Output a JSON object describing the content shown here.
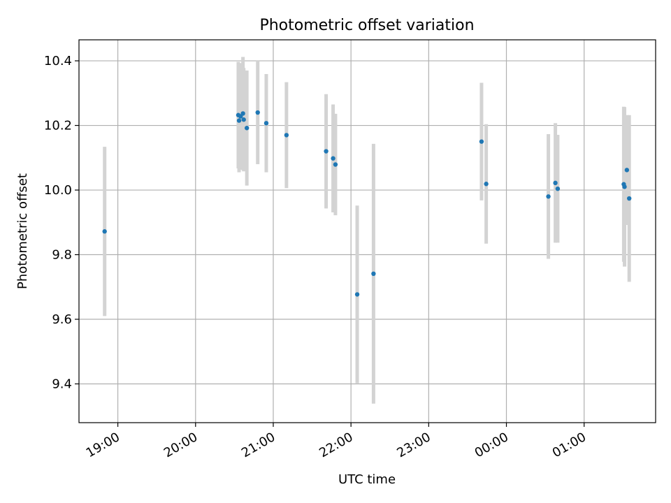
{
  "chart_data": {
    "type": "scatter",
    "title": "Photometric offset variation",
    "xlabel": "UTC time",
    "ylabel": "Photometric offset",
    "x_unit": "UTC hours (times after midnight written as 24+)",
    "xlim": [
      18.5,
      25.92
    ],
    "ylim": [
      9.28,
      10.465
    ],
    "x_ticks": [
      {
        "value": 19,
        "label": "19:00"
      },
      {
        "value": 20,
        "label": "20:00"
      },
      {
        "value": 21,
        "label": "21:00"
      },
      {
        "value": 22,
        "label": "22:00"
      },
      {
        "value": 23,
        "label": "23:00"
      },
      {
        "value": 24,
        "label": "00:00"
      },
      {
        "value": 25,
        "label": "01:00"
      }
    ],
    "y_ticks": [
      {
        "value": 9.4,
        "label": "9.4"
      },
      {
        "value": 9.6,
        "label": "9.6"
      },
      {
        "value": 9.8,
        "label": "9.8"
      },
      {
        "value": 10.0,
        "label": "10.0"
      },
      {
        "value": 10.2,
        "label": "10.2"
      },
      {
        "value": 10.4,
        "label": "10.4"
      }
    ],
    "grid": true,
    "x_tick_rotation": "30 degrees",
    "colors": {
      "point": "#1f77b4",
      "errorbar": "#d3d3d3",
      "grid": "#b0b0b0"
    },
    "points": [
      {
        "x": 18.83,
        "y": 9.872,
        "err": 0.262
      },
      {
        "x": 20.55,
        "y": 10.232,
        "err": 0.165
      },
      {
        "x": 20.56,
        "y": 10.215,
        "err": 0.16
      },
      {
        "x": 20.58,
        "y": 10.228,
        "err": 0.165
      },
      {
        "x": 20.61,
        "y": 10.237,
        "err": 0.175
      },
      {
        "x": 20.62,
        "y": 10.218,
        "err": 0.16
      },
      {
        "x": 20.66,
        "y": 10.192,
        "err": 0.178
      },
      {
        "x": 20.8,
        "y": 10.24,
        "err": 0.16
      },
      {
        "x": 20.91,
        "y": 10.207,
        "err": 0.152
      },
      {
        "x": 21.17,
        "y": 10.17,
        "err": 0.164
      },
      {
        "x": 21.68,
        "y": 10.12,
        "err": 0.177
      },
      {
        "x": 21.77,
        "y": 10.098,
        "err": 0.167
      },
      {
        "x": 21.8,
        "y": 10.079,
        "err": 0.157
      },
      {
        "x": 22.08,
        "y": 9.677,
        "err": 0.275
      },
      {
        "x": 22.29,
        "y": 9.741,
        "err": 0.402
      },
      {
        "x": 23.68,
        "y": 10.15,
        "err": 0.182
      },
      {
        "x": 23.74,
        "y": 10.019,
        "err": 0.185
      },
      {
        "x": 24.54,
        "y": 9.98,
        "err": 0.193
      },
      {
        "x": 24.63,
        "y": 10.022,
        "err": 0.185
      },
      {
        "x": 24.66,
        "y": 10.004,
        "err": 0.167
      },
      {
        "x": 25.51,
        "y": 10.018,
        "err": 0.24
      },
      {
        "x": 25.52,
        "y": 10.01,
        "err": 0.247
      },
      {
        "x": 25.55,
        "y": 10.062,
        "err": 0.17
      },
      {
        "x": 25.58,
        "y": 9.974,
        "err": 0.258
      }
    ]
  }
}
